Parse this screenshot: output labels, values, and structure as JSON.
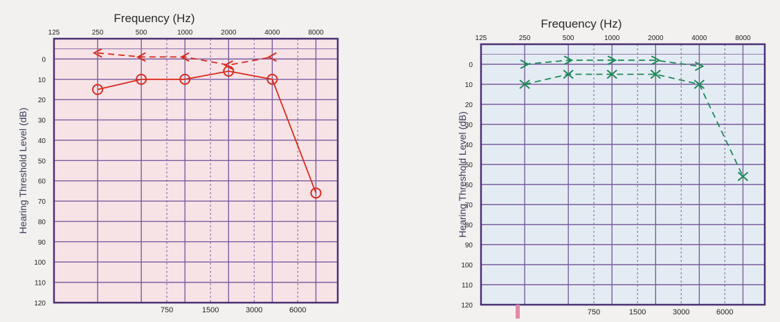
{
  "charts": [
    {
      "x_title": "Frequency (Hz)",
      "y_title": "Hearing Threshold Level (dB)",
      "bg": "#f7e3e6",
      "grid_color": "#7a5aa0",
      "frame_color": "#4a2f73",
      "mark_color": "#d92a1c"
    },
    {
      "x_title": "Frequency (Hz)",
      "y_title": "Hearing Threshold Level (dB)",
      "bg": "#e4ecf3",
      "grid_color": "#7a5aa0",
      "frame_color": "#4a2f73",
      "mark_color": "#1a8a55"
    }
  ],
  "chart_data": [
    {
      "type": "line",
      "title": "",
      "xlabel": "Frequency (Hz)",
      "ylabel": "Hearing Threshold Level (dB)",
      "x_scale": "log",
      "x_top_ticks": [
        125,
        250,
        500,
        1000,
        2000,
        4000,
        8000
      ],
      "x_bottom_ticks": [
        750,
        1500,
        3000,
        6000
      ],
      "y_ticks": [
        0,
        10,
        20,
        30,
        40,
        50,
        60,
        70,
        80,
        90,
        100,
        110,
        120
      ],
      "ylim": [
        120,
        -10
      ],
      "y_inverted": true,
      "series": [
        {
          "style": "solid",
          "marker": "circle",
          "x": [
            250,
            500,
            1000,
            2000,
            4000,
            8000
          ],
          "y": [
            15,
            10,
            10,
            6,
            10,
            66
          ]
        },
        {
          "style": "dashed",
          "marker": "lt",
          "x": [
            250,
            500,
            1000,
            2000,
            4000
          ],
          "y": [
            -3,
            -1,
            -1,
            3,
            -1
          ]
        }
      ]
    },
    {
      "type": "line",
      "title": "",
      "xlabel": "Frequency (Hz)",
      "ylabel": "Hearing Threshold Level (dB)",
      "x_scale": "log",
      "x_top_ticks": [
        125,
        250,
        500,
        1000,
        2000,
        4000,
        8000
      ],
      "x_bottom_ticks": [
        750,
        1500,
        3000,
        6000
      ],
      "y_ticks": [
        0,
        10,
        20,
        30,
        40,
        50,
        60,
        70,
        80,
        90,
        100,
        110,
        120
      ],
      "ylim": [
        120,
        -10
      ],
      "y_inverted": true,
      "series": [
        {
          "style": "dashed",
          "marker": "gt",
          "x": [
            250,
            500,
            1000,
            2000,
            4000
          ],
          "y": [
            0,
            -2,
            -2,
            -2,
            1
          ]
        },
        {
          "style": "dashed",
          "marker": "x",
          "x": [
            250,
            500,
            1000,
            2000,
            4000,
            8000
          ],
          "y": [
            10,
            5,
            5,
            5,
            10,
            56
          ]
        }
      ]
    }
  ]
}
